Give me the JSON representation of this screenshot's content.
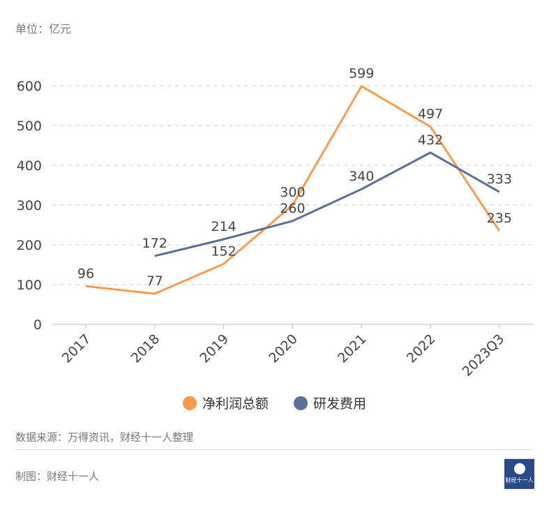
{
  "unit_label": "单位：亿元",
  "chart_data": {
    "type": "line",
    "categories": [
      "2017",
      "2018",
      "2019",
      "2020",
      "2021",
      "2022",
      "2023Q3"
    ],
    "series": [
      {
        "name": "净利润总额",
        "color": "#ff9a4d",
        "values": [
          96,
          77,
          152,
          300,
          599,
          497,
          235
        ]
      },
      {
        "name": "研发费用",
        "color": "#5b6f99",
        "values": [
          null,
          172,
          214,
          260,
          340,
          432,
          333
        ]
      }
    ],
    "yticks": [
      0,
      100,
      200,
      300,
      400,
      500,
      600
    ],
    "ylim": [
      0,
      600
    ],
    "grid": true,
    "legend": "bottom"
  },
  "source": "数据来源：万得资讯，财经十一人整理",
  "maker": "制图：财经十一人",
  "logo_text": "财经十一人"
}
